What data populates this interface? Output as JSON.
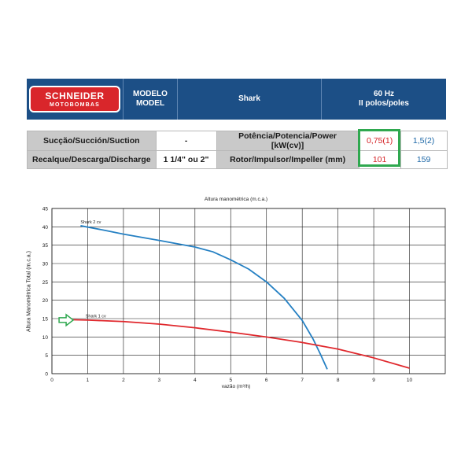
{
  "header": {
    "logo_main": "SCHNEIDER",
    "logo_sub": "MOTOBOMBAS",
    "model_label_1": "MODELO",
    "model_label_2": "MODEL",
    "model_value": "Shark",
    "freq_1": "60 Hz",
    "freq_2": "II polos/poles"
  },
  "spec": {
    "suction_label": "Sucção/Succión/Suction",
    "suction_value": "-",
    "discharge_label": "Recalque/Descarga/Discharge",
    "discharge_value": "1 1/4\" ou 2\"",
    "power_label": "Potência/Potencia/Power [kW(cv)]",
    "power_1": "0,75(1)",
    "power_2": "1,5(2)",
    "rotor_label": "Rotor/Impulsor/Impeller (mm)",
    "rotor_1": "101",
    "rotor_2": "159"
  },
  "colors": {
    "header_bg": "#1c4f86",
    "logo_red": "#d9262b",
    "series_blue": "#2580c3",
    "series_red": "#e0282d",
    "highlight_green": "#2fa84f"
  },
  "chart_data": {
    "type": "line",
    "title": "Altura manométrica (m.c.a.)",
    "xlabel": "vazão (m³/h)",
    "ylabel": "Altura Manométrica Total (m.c.a.)",
    "xlim": [
      0,
      11
    ],
    "ylim": [
      0,
      45
    ],
    "xticks": [
      0,
      1,
      2,
      3,
      4,
      5,
      6,
      7,
      8,
      9,
      10
    ],
    "yticks": [
      0,
      5,
      10,
      15,
      20,
      25,
      30,
      35,
      40,
      45
    ],
    "grid": true,
    "series": [
      {
        "name": "Shark 2 cv",
        "color": "#2580c3",
        "x": [
          0.8,
          1.5,
          2,
          3,
          4,
          4.5,
          5,
          5.5,
          6,
          6.5,
          7,
          7.3,
          7.5,
          7.7
        ],
        "y": [
          40.3,
          39,
          38,
          36.3,
          34.5,
          33.2,
          31,
          28.5,
          25,
          20.5,
          14.5,
          9.5,
          5.5,
          1.2
        ]
      },
      {
        "name": "Shark 1 cv",
        "color": "#e0282d",
        "x": [
          0.5,
          1,
          2,
          3,
          4,
          5,
          6,
          7,
          8,
          9,
          10
        ],
        "y": [
          14.7,
          14.6,
          14.2,
          13.5,
          12.5,
          11.3,
          10,
          8.5,
          6.7,
          4.3,
          1.5
        ]
      }
    ],
    "annotation": "arrow pointing at Shark 1 cv"
  }
}
